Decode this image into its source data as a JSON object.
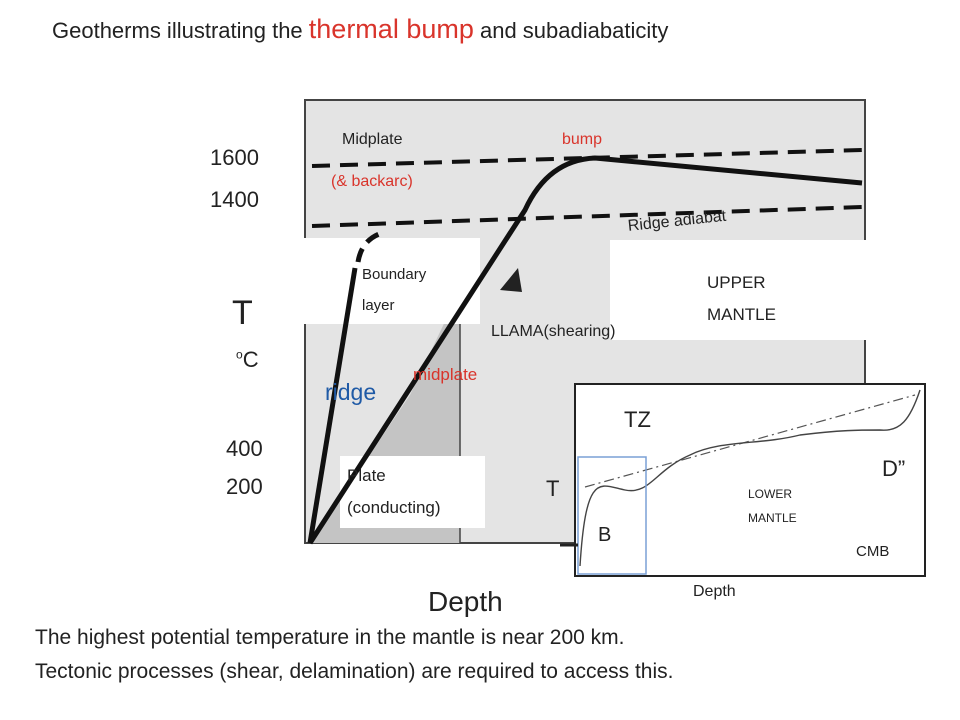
{
  "title": {
    "prefix": "Geotherms illustrating the ",
    "highlight": "thermal bump",
    "suffix": " and  subadiabaticity"
  },
  "main_plot": {
    "y_ticks": [
      "1600",
      "1400",
      "400",
      "200"
    ],
    "y_axis_label": "T",
    "y_axis_unit_sup": "o",
    "y_axis_unit": "C",
    "x_axis_label": "Depth",
    "labels": {
      "midplate_top": "Midplate",
      "bump": "bump",
      "backarc": "(& backarc)",
      "ridge_adiabat": "Ridge adiabat",
      "boundary_layer_1": "Boundary",
      "boundary_layer_2": "layer",
      "upper_mantle_1": "UPPER",
      "upper_mantle_2": "MANTLE",
      "llama": "LLAMA(shearing)",
      "midplate": "midplate",
      "ridge": "ridge",
      "plate_1": "Plate",
      "plate_2": "(conducting)"
    }
  },
  "inset": {
    "labels": {
      "tz": "TZ",
      "t": "T",
      "d_double_prime": "D”",
      "lower_mantle_1": "LOWER",
      "lower_mantle_2": "MANTLE",
      "b": "B",
      "cmb": "CMB",
      "depth": "Depth"
    }
  },
  "footer": {
    "line1": "The highest potential temperature in the mantle is near 200 km.",
    "line2": "Tectonic processes (shear, delamination) are required to access this."
  },
  "colors": {
    "accent_red": "#d9342b",
    "ridge_blue": "#1f5aa6",
    "plot_bg": "#e4e4e4",
    "inset_box": "#7aa0d6"
  }
}
